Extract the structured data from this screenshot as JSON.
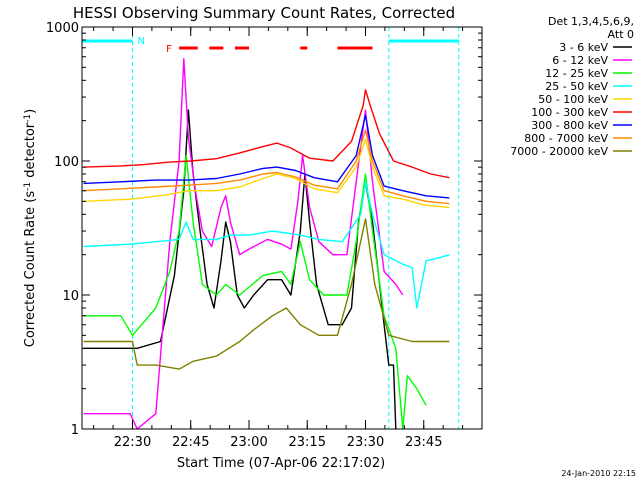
{
  "chart_data": {
    "type": "line",
    "title": "HESSI Observing Summary Count Rates, Corrected",
    "xlabel": "Start Time (07-Apr-06 22:17:02)",
    "ylabel": "Corrected Count Rate (s⁻¹ detector⁻¹)",
    "ylabel_main": "Corrected Count Rate (s",
    "ylabel_sup1": "-1",
    "ylabel_mid": " detector",
    "ylabel_sup2": "-1",
    "ylabel_end": ")",
    "y_scale": "log",
    "ylim": [
      1,
      1000
    ],
    "xlim_minutes": [
      22.2833,
      24.0
    ],
    "x_tick_minutes": [
      22.5,
      22.75,
      23.0,
      23.25,
      23.5,
      23.75
    ],
    "x_tick_labels": [
      "22:30",
      "22:45",
      "23:00",
      "23:15",
      "23:30",
      "23:45"
    ],
    "y_tick_values": [
      1,
      10,
      100,
      1000
    ],
    "y_tick_labels": [
      "1",
      "10",
      "100",
      "1000"
    ],
    "legend_header": [
      "Det 1,3,4,5,6,9,",
      "Att 0"
    ],
    "legend_placement": "right",
    "footer_timestamp": "24-Jan-2010 22:15",
    "night_marker": "N",
    "flare_marker": "F",
    "saa_night_color": "#00ffff",
    "flare_color": "#ff0000",
    "night_intervals": [
      [
        22.2833,
        22.5
      ],
      [
        23.6,
        23.9
      ]
    ],
    "flare_intervals": [
      [
        22.7,
        22.78
      ],
      [
        22.83,
        22.89
      ],
      [
        22.94,
        23.0
      ],
      [
        23.22,
        23.25
      ],
      [
        23.38,
        23.53
      ]
    ],
    "series": [
      {
        "name": "3 - 6 keV",
        "color": "#000000",
        "points": [
          [
            22.29,
            4
          ],
          [
            22.49,
            4
          ],
          [
            22.52,
            4
          ],
          [
            22.62,
            4.5
          ],
          [
            22.68,
            14
          ],
          [
            22.72,
            60
          ],
          [
            22.74,
            240
          ],
          [
            22.76,
            80
          ],
          [
            22.79,
            30
          ],
          [
            22.82,
            12
          ],
          [
            22.85,
            8
          ],
          [
            22.88,
            18
          ],
          [
            22.9,
            35
          ],
          [
            22.92,
            25
          ],
          [
            22.95,
            10
          ],
          [
            22.98,
            8
          ],
          [
            23.02,
            10
          ],
          [
            23.08,
            13
          ],
          [
            23.14,
            13
          ],
          [
            23.18,
            10
          ],
          [
            23.22,
            30
          ],
          [
            23.24,
            80
          ],
          [
            23.26,
            35
          ],
          [
            23.29,
            12
          ],
          [
            23.34,
            6
          ],
          [
            23.4,
            6
          ],
          [
            23.44,
            8
          ],
          [
            23.47,
            35
          ],
          [
            23.5,
            70
          ],
          [
            23.53,
            35
          ],
          [
            23.58,
            6
          ],
          [
            23.6,
            3
          ],
          [
            23.62,
            3
          ],
          [
            23.63,
            1
          ]
        ]
      },
      {
        "name": "6 - 12 keV",
        "color": "#ff00ff",
        "points": [
          [
            22.29,
            1.3
          ],
          [
            22.49,
            1.3
          ],
          [
            22.52,
            1
          ],
          [
            22.6,
            1.3
          ],
          [
            22.66,
            25
          ],
          [
            22.7,
            100
          ],
          [
            22.72,
            580
          ],
          [
            22.74,
            150
          ],
          [
            22.77,
            60
          ],
          [
            22.8,
            30
          ],
          [
            22.84,
            23
          ],
          [
            22.88,
            45
          ],
          [
            22.9,
            55
          ],
          [
            22.92,
            35
          ],
          [
            22.96,
            20
          ],
          [
            23.0,
            22
          ],
          [
            23.08,
            26
          ],
          [
            23.14,
            24
          ],
          [
            23.18,
            22
          ],
          [
            23.21,
            50
          ],
          [
            23.23,
            110
          ],
          [
            23.26,
            45
          ],
          [
            23.3,
            25
          ],
          [
            23.36,
            20
          ],
          [
            23.42,
            20
          ],
          [
            23.46,
            70
          ],
          [
            23.5,
            240
          ],
          [
            23.53,
            70
          ],
          [
            23.58,
            15
          ],
          [
            23.63,
            12
          ],
          [
            23.66,
            10
          ]
        ]
      },
      {
        "name": "12 - 25 keV",
        "color": "#00ff00",
        "points": [
          [
            22.29,
            7
          ],
          [
            22.45,
            7
          ],
          [
            22.5,
            5
          ],
          [
            22.6,
            8
          ],
          [
            22.66,
            15
          ],
          [
            22.7,
            30
          ],
          [
            22.73,
            110
          ],
          [
            22.76,
            35
          ],
          [
            22.8,
            12
          ],
          [
            22.86,
            10
          ],
          [
            22.9,
            12
          ],
          [
            22.96,
            10
          ],
          [
            23.06,
            14
          ],
          [
            23.14,
            15
          ],
          [
            23.18,
            12
          ],
          [
            23.22,
            25
          ],
          [
            23.26,
            13
          ],
          [
            23.32,
            10
          ],
          [
            23.42,
            10
          ],
          [
            23.46,
            25
          ],
          [
            23.5,
            80
          ],
          [
            23.53,
            30
          ],
          [
            23.58,
            7
          ],
          [
            23.63,
            4
          ],
          [
            23.66,
            1
          ],
          [
            23.68,
            2.5
          ],
          [
            23.72,
            2
          ],
          [
            23.76,
            1.5
          ]
        ]
      },
      {
        "name": "25 - 50 keV",
        "color": "#00ffff",
        "points": [
          [
            22.29,
            23
          ],
          [
            22.5,
            24
          ],
          [
            22.6,
            25
          ],
          [
            22.7,
            26
          ],
          [
            22.73,
            35
          ],
          [
            22.76,
            26
          ],
          [
            22.86,
            26
          ],
          [
            22.92,
            28
          ],
          [
            23.0,
            28
          ],
          [
            23.1,
            30
          ],
          [
            23.16,
            29
          ],
          [
            23.22,
            28
          ],
          [
            23.3,
            26
          ],
          [
            23.4,
            25
          ],
          [
            23.48,
            40
          ],
          [
            23.5,
            70
          ],
          [
            23.53,
            40
          ],
          [
            23.58,
            20
          ],
          [
            23.66,
            17
          ],
          [
            23.7,
            16
          ],
          [
            23.72,
            8
          ],
          [
            23.76,
            18
          ],
          [
            23.82,
            19
          ],
          [
            23.86,
            20
          ]
        ]
      },
      {
        "name": "50 - 100 keV",
        "color": "#ffd700",
        "points": [
          [
            22.29,
            50
          ],
          [
            22.5,
            52
          ],
          [
            22.65,
            56
          ],
          [
            22.74,
            60
          ],
          [
            22.86,
            60
          ],
          [
            22.96,
            64
          ],
          [
            23.06,
            74
          ],
          [
            23.12,
            80
          ],
          [
            23.2,
            74
          ],
          [
            23.28,
            62
          ],
          [
            23.38,
            58
          ],
          [
            23.46,
            90
          ],
          [
            23.5,
            145
          ],
          [
            23.53,
            90
          ],
          [
            23.58,
            55
          ],
          [
            23.66,
            52
          ],
          [
            23.75,
            47
          ],
          [
            23.86,
            45
          ]
        ]
      },
      {
        "name": "100 - 300 keV",
        "color": "#ff0000",
        "points": [
          [
            22.29,
            90
          ],
          [
            22.45,
            92
          ],
          [
            22.55,
            94
          ],
          [
            22.65,
            98
          ],
          [
            22.75,
            100
          ],
          [
            22.86,
            104
          ],
          [
            22.96,
            115
          ],
          [
            23.06,
            128
          ],
          [
            23.12,
            136
          ],
          [
            23.18,
            125
          ],
          [
            23.26,
            105
          ],
          [
            23.36,
            100
          ],
          [
            23.44,
            140
          ],
          [
            23.49,
            260
          ],
          [
            23.5,
            340
          ],
          [
            23.52,
            260
          ],
          [
            23.56,
            160
          ],
          [
            23.62,
            100
          ],
          [
            23.7,
            90
          ],
          [
            23.78,
            80
          ],
          [
            23.86,
            75
          ]
        ]
      },
      {
        "name": "300 - 800 keV",
        "color": "#0000ff",
        "points": [
          [
            22.29,
            68
          ],
          [
            22.45,
            70
          ],
          [
            22.6,
            72
          ],
          [
            22.74,
            72
          ],
          [
            22.86,
            74
          ],
          [
            22.96,
            80
          ],
          [
            23.06,
            88
          ],
          [
            23.12,
            90
          ],
          [
            23.2,
            85
          ],
          [
            23.28,
            75
          ],
          [
            23.38,
            70
          ],
          [
            23.46,
            110
          ],
          [
            23.5,
            220
          ],
          [
            23.53,
            110
          ],
          [
            23.58,
            65
          ],
          [
            23.66,
            60
          ],
          [
            23.76,
            55
          ],
          [
            23.86,
            53
          ]
        ]
      },
      {
        "name": "800 - 7000 keV",
        "color": "#ff8c00",
        "points": [
          [
            22.29,
            60
          ],
          [
            22.45,
            62
          ],
          [
            22.6,
            64
          ],
          [
            22.74,
            66
          ],
          [
            22.86,
            68
          ],
          [
            22.96,
            72
          ],
          [
            23.06,
            80
          ],
          [
            23.12,
            82
          ],
          [
            23.2,
            76
          ],
          [
            23.28,
            66
          ],
          [
            23.38,
            62
          ],
          [
            23.46,
            100
          ],
          [
            23.5,
            170
          ],
          [
            23.53,
            100
          ],
          [
            23.58,
            60
          ],
          [
            23.66,
            55
          ],
          [
            23.76,
            50
          ],
          [
            23.86,
            48
          ]
        ]
      },
      {
        "name": "7000 - 20000 keV",
        "color": "#808000",
        "points": [
          [
            22.29,
            4.5
          ],
          [
            22.5,
            4.5
          ],
          [
            22.52,
            3
          ],
          [
            22.6,
            3
          ],
          [
            22.7,
            2.8
          ],
          [
            22.76,
            3.2
          ],
          [
            22.86,
            3.5
          ],
          [
            22.96,
            4.5
          ],
          [
            23.02,
            5.5
          ],
          [
            23.1,
            7
          ],
          [
            23.16,
            8
          ],
          [
            23.22,
            6
          ],
          [
            23.3,
            5
          ],
          [
            23.38,
            5
          ],
          [
            23.44,
            12
          ],
          [
            23.5,
            37
          ],
          [
            23.54,
            12
          ],
          [
            23.6,
            5
          ],
          [
            23.7,
            4.5
          ],
          [
            23.8,
            4.5
          ],
          [
            23.86,
            4.5
          ]
        ]
      }
    ]
  }
}
